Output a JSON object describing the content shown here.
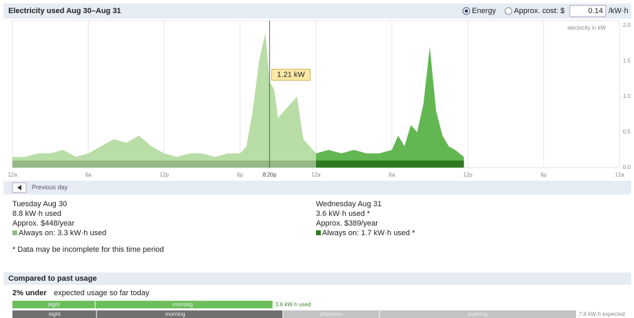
{
  "header": {
    "title": "Electricity used Aug 30–Aug 31",
    "energy": "Energy",
    "cost": "Approx. cost: $",
    "rate": "0.14",
    "unit": "/kW·h"
  },
  "chart_data": {
    "type": "area",
    "y_label": "electricity in kW",
    "xlim": [
      0,
      48
    ],
    "ylim": [
      0,
      2
    ],
    "grid": true,
    "xticks": [
      {
        "value": 0,
        "label": "12a"
      },
      {
        "value": 6,
        "label": "6a"
      },
      {
        "value": 12,
        "label": "12p"
      },
      {
        "value": 18,
        "label": "6p"
      },
      {
        "value": 24,
        "label": "12a"
      },
      {
        "value": 30,
        "label": "6a"
      },
      {
        "value": 36,
        "label": "12p"
      },
      {
        "value": 42,
        "label": "6p"
      },
      {
        "value": 48,
        "label": "12a"
      }
    ],
    "yticks": [
      {
        "value": 0,
        "label": "0.0"
      },
      0.5,
      {
        "value": 1,
        "label": "1.0"
      },
      1.5,
      {
        "value": 2,
        "label": "2.0"
      }
    ],
    "series": [
      {
        "name": "Tuesday Aug 30",
        "color": "#b8dda6",
        "always_on_color": "#94b985",
        "always_on": 0.1,
        "x": [
          0,
          1,
          2,
          3,
          4,
          5,
          6,
          7,
          8,
          9,
          10,
          11,
          12,
          13,
          14,
          15,
          16,
          17,
          18,
          18.5,
          19,
          19.5,
          20,
          20.33,
          20.7,
          21,
          21.5,
          22,
          22.5,
          23,
          24
        ],
        "values": [
          0.15,
          0.15,
          0.2,
          0.2,
          0.25,
          0.15,
          0.2,
          0.3,
          0.4,
          0.35,
          0.45,
          0.3,
          0.2,
          0.15,
          0.2,
          0.2,
          0.15,
          0.2,
          0.2,
          0.3,
          0.8,
          1.5,
          1.9,
          1.21,
          1.1,
          0.7,
          0.8,
          0.9,
          1.0,
          0.4,
          0.2
        ]
      },
      {
        "name": "Wednesday Aug 31",
        "color": "#62b752",
        "always_on_color": "#2f7a20",
        "always_on": 0.1,
        "x": [
          24,
          25,
          26,
          27,
          28,
          29,
          30,
          30.5,
          31,
          31.5,
          32,
          32.5,
          33,
          33.5,
          34,
          34.5,
          35,
          35.7
        ],
        "values": [
          0.2,
          0.25,
          0.2,
          0.25,
          0.2,
          0.2,
          0.25,
          0.45,
          0.3,
          0.6,
          0.5,
          0.9,
          1.7,
          0.8,
          0.45,
          0.3,
          0.25,
          0.15
        ]
      }
    ],
    "annotation": {
      "x": {
        "value": 20.33,
        "label": "8:20p"
      },
      "value": 1.21,
      "label": "1.21 kW"
    }
  },
  "prev": "Previous day",
  "days": [
    {
      "used": "8.8 kW·h used",
      "cost": "Approx. $448/year",
      "always_on": "Always on: 3.3 kW·h used"
    },
    {
      "used": "3.6 kW·h used *",
      "cost": "Approx. $389/year",
      "always_on": "Always on: 1.7 kW·h used *"
    }
  ],
  "footnote": "* Data may be incomplete for this time period",
  "comparison": {
    "title": "Compared to past usage",
    "pct": "2% under",
    "text": "expected usage so far today",
    "used": {
      "value": 3.6,
      "label": "3.6 kW·h used"
    },
    "expected": {
      "value": 7.8,
      "label": "7.8 kW·h expected"
    },
    "periods": [
      "night",
      "morning",
      "afternoon",
      "evening"
    ]
  }
}
